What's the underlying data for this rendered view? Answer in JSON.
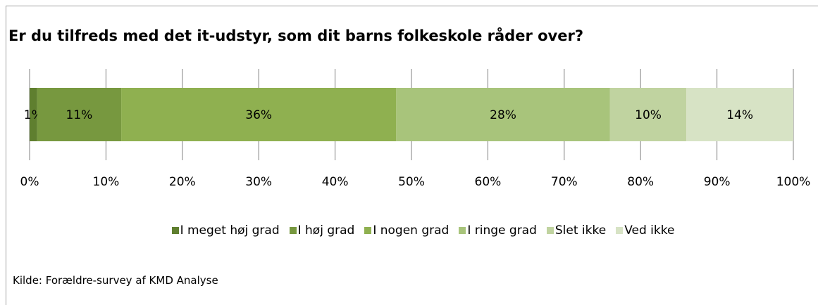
{
  "chart_data": {
    "type": "stacked_bar",
    "orientation": "horizontal",
    "title": "Er du tilfreds med det it-udstyr, som dit barns folkeskole råder over?",
    "series": [
      {
        "name": "I meget høj grad",
        "color": "#5f7f2f",
        "values": [
          1
        ],
        "value_labels": [
          "1%"
        ]
      },
      {
        "name": "I høj grad",
        "color": "#77983f",
        "values": [
          11
        ],
        "value_labels": [
          "11%"
        ]
      },
      {
        "name": "I nogen grad",
        "color": "#8fb050",
        "values": [
          36
        ],
        "value_labels": [
          "36%"
        ]
      },
      {
        "name": "I ringe grad",
        "color": "#a8c47b",
        "values": [
          28
        ],
        "value_labels": [
          "28%"
        ]
      },
      {
        "name": "Slet ikke",
        "color": "#c0d3a0",
        "values": [
          10
        ],
        "value_labels": [
          "10%"
        ]
      },
      {
        "name": "Ved ikke",
        "color": "#d7e3c5",
        "values": [
          14
        ],
        "value_labels": [
          "14%"
        ]
      }
    ],
    "xlim": [
      0,
      100
    ],
    "xticks": [
      {
        "value": 0,
        "label": "0%"
      },
      {
        "value": 10,
        "label": "10%"
      },
      {
        "value": 20,
        "label": "20%"
      },
      {
        "value": 30,
        "label": "30%"
      },
      {
        "value": 40,
        "label": "40%"
      },
      {
        "value": 50,
        "label": "50%"
      },
      {
        "value": 60,
        "label": "60%"
      },
      {
        "value": 70,
        "label": "70%"
      },
      {
        "value": 80,
        "label": "80%"
      },
      {
        "value": 90,
        "label": "90%"
      },
      {
        "value": 100,
        "label": "100%"
      }
    ],
    "grid": true,
    "legend": "bottom",
    "source": "Kilde:  Forældre-survey af KMD Analyse"
  }
}
